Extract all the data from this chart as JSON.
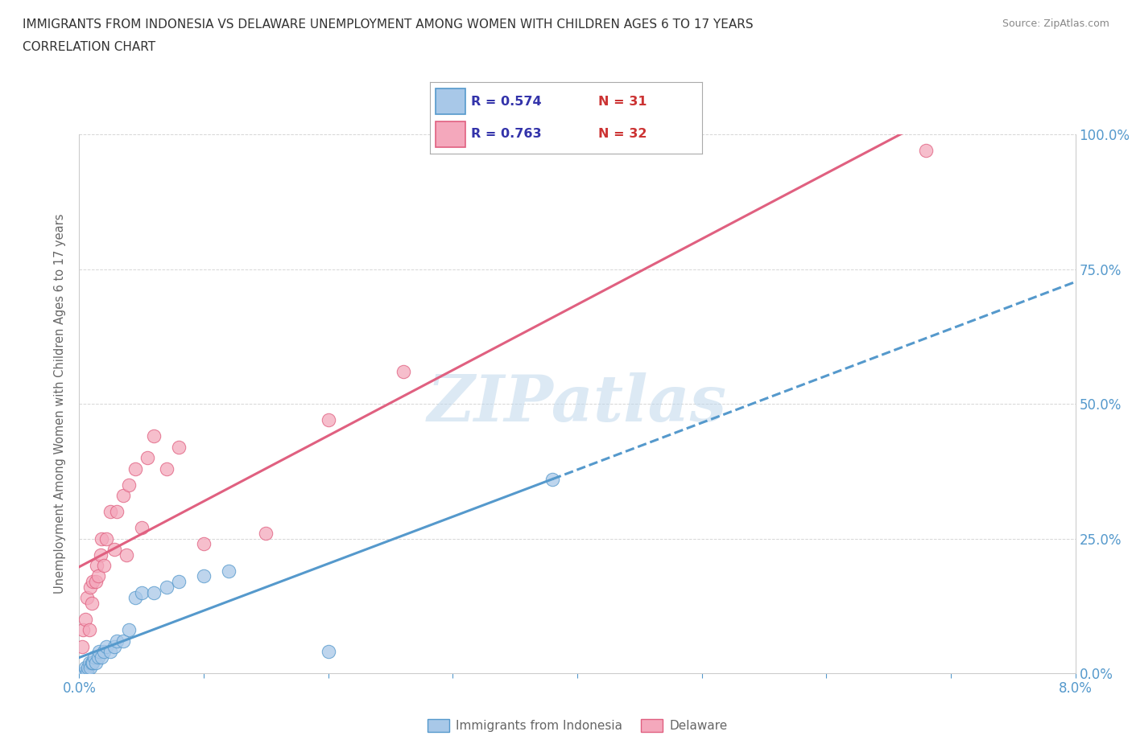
{
  "title_line1": "IMMIGRANTS FROM INDONESIA VS DELAWARE UNEMPLOYMENT AMONG WOMEN WITH CHILDREN AGES 6 TO 17 YEARS",
  "title_line2": "CORRELATION CHART",
  "source_text": "Source: ZipAtlas.com",
  "ylabel_label": "Unemployment Among Women with Children Ages 6 to 17 years",
  "xlim": [
    0.0,
    0.08
  ],
  "ylim": [
    0.0,
    1.0
  ],
  "xticks": [
    0.0,
    0.01,
    0.02,
    0.03,
    0.04,
    0.05,
    0.06,
    0.07,
    0.08
  ],
  "yticks": [
    0.0,
    0.25,
    0.5,
    0.75,
    1.0
  ],
  "ytick_labels": [
    "0.0%",
    "25.0%",
    "50.0%",
    "75.0%",
    "100.0%"
  ],
  "xtick_labels": [
    "0.0%",
    "",
    "",
    "",
    "",
    "",
    "",
    "",
    "8.0%"
  ],
  "color_indonesia": "#a8c8e8",
  "color_delaware": "#f4a8bc",
  "line_color_indonesia": "#5599cc",
  "line_color_delaware": "#e06080",
  "watermark_text": "ZIPatlas",
  "legend_r_indonesia": "R = 0.574",
  "legend_n_indonesia": "N = 31",
  "legend_r_delaware": "R = 0.763",
  "legend_n_delaware": "N = 32",
  "indonesia_x": [
    0.0002,
    0.0003,
    0.0004,
    0.0005,
    0.0006,
    0.0007,
    0.0008,
    0.0009,
    0.001,
    0.0011,
    0.0012,
    0.0013,
    0.0015,
    0.0016,
    0.0018,
    0.002,
    0.0022,
    0.0025,
    0.0028,
    0.003,
    0.0035,
    0.004,
    0.0045,
    0.005,
    0.006,
    0.007,
    0.008,
    0.01,
    0.012,
    0.02,
    0.038
  ],
  "indonesia_y": [
    0.0,
    0.0,
    0.0,
    0.01,
    0.0,
    0.01,
    0.02,
    0.01,
    0.02,
    0.02,
    0.03,
    0.02,
    0.03,
    0.04,
    0.03,
    0.04,
    0.05,
    0.04,
    0.05,
    0.06,
    0.06,
    0.08,
    0.14,
    0.15,
    0.15,
    0.16,
    0.17,
    0.18,
    0.19,
    0.04,
    0.36
  ],
  "delaware_x": [
    0.0002,
    0.0003,
    0.0005,
    0.0006,
    0.0008,
    0.0009,
    0.001,
    0.0011,
    0.0013,
    0.0014,
    0.0015,
    0.0017,
    0.0018,
    0.002,
    0.0022,
    0.0025,
    0.0028,
    0.003,
    0.0035,
    0.0038,
    0.004,
    0.0045,
    0.005,
    0.0055,
    0.006,
    0.007,
    0.008,
    0.01,
    0.015,
    0.02,
    0.026,
    0.068
  ],
  "delaware_y": [
    0.05,
    0.08,
    0.1,
    0.14,
    0.08,
    0.16,
    0.13,
    0.17,
    0.17,
    0.2,
    0.18,
    0.22,
    0.25,
    0.2,
    0.25,
    0.3,
    0.23,
    0.3,
    0.33,
    0.22,
    0.35,
    0.38,
    0.27,
    0.4,
    0.44,
    0.38,
    0.42,
    0.24,
    0.26,
    0.47,
    0.56,
    0.97
  ],
  "tick_color": "#5599cc",
  "axis_color": "#cccccc",
  "grid_color": "#cccccc",
  "background_color": "#ffffff",
  "legend_text_color_r": "#3333aa",
  "legend_text_color_n": "#cc3333"
}
